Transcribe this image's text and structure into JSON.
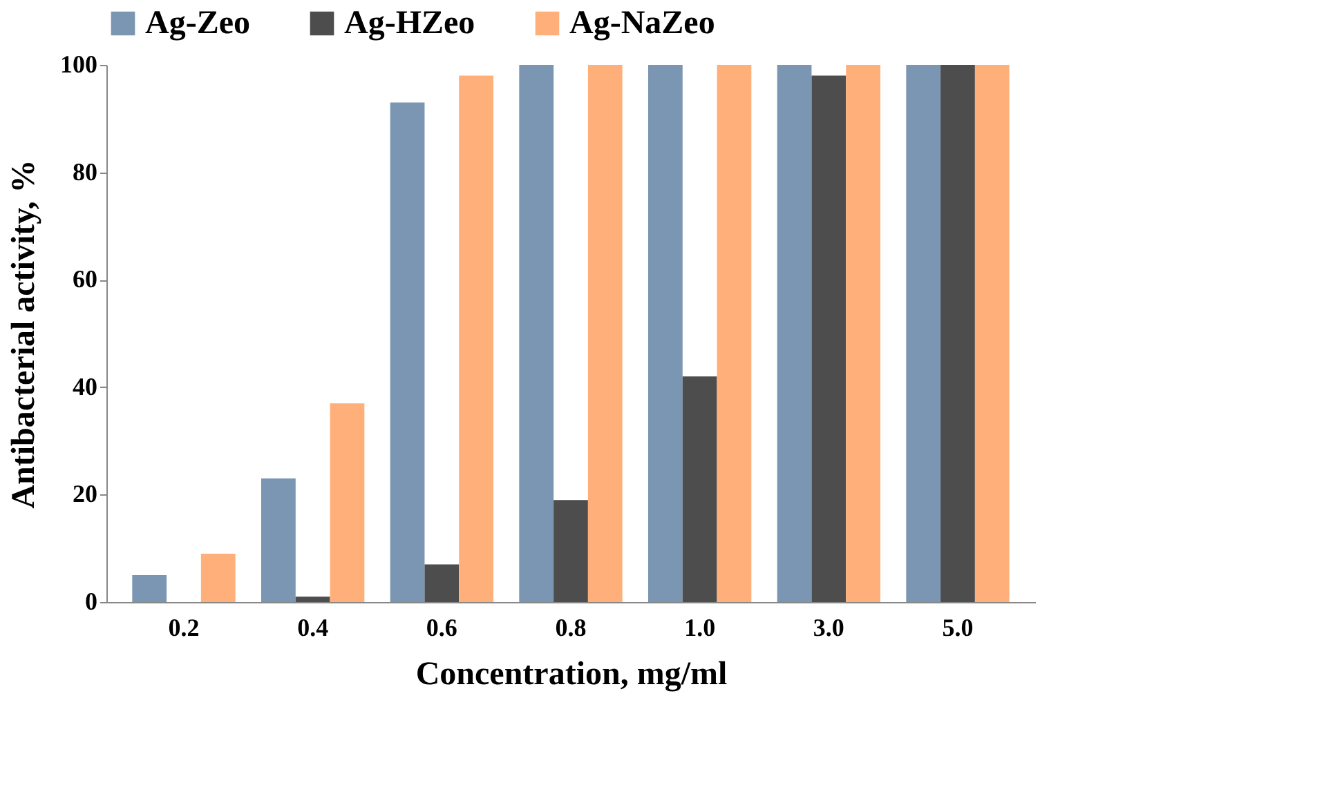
{
  "chart_data": {
    "type": "bar",
    "xlabel": "Concentration, mg/ml",
    "ylabel": "Antibacterial activity, %",
    "categories": [
      "0.2",
      "0.4",
      "0.6",
      "0.8",
      "1.0",
      "3.0",
      "5.0"
    ],
    "series": [
      {
        "name": "Ag-Zeo",
        "color": "#7b96b2",
        "values": [
          5,
          23,
          93,
          100,
          100,
          100,
          100
        ]
      },
      {
        "name": "Ag-HZeo",
        "color": "#4d4d4d",
        "values": [
          0,
          1,
          7,
          19,
          42,
          98,
          100
        ]
      },
      {
        "name": "Ag-NaZeo",
        "color": "#ffb07a",
        "values": [
          9,
          37,
          98,
          100,
          100,
          100,
          100
        ]
      }
    ],
    "ylim": [
      0,
      100
    ],
    "yticks": [
      0,
      20,
      40,
      60,
      80,
      100
    ],
    "grid": false,
    "legend": "top"
  }
}
